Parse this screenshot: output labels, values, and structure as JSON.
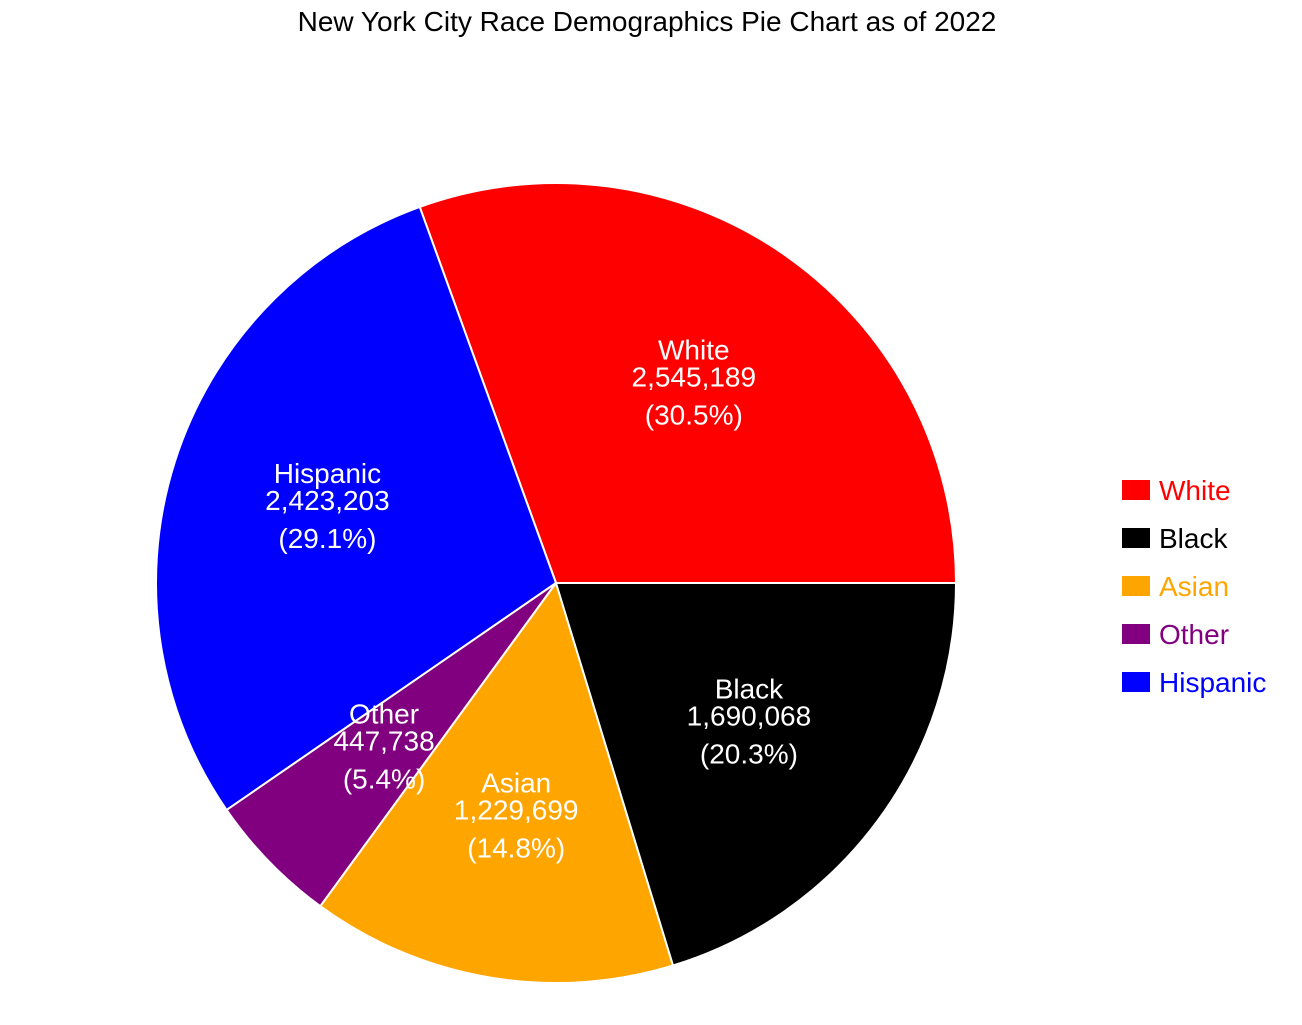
{
  "chart_data": {
    "type": "pie",
    "title": "New York City Race Demographics Pie Chart as of 2022",
    "slices": [
      {
        "label": "White",
        "value": 2545189,
        "value_text": "2,545,189",
        "percent_text": "(30.5%)",
        "color": "#ff0000"
      },
      {
        "label": "Hispanic",
        "value": 2423203,
        "value_text": "2,423,203",
        "percent_text": "(29.1%)",
        "color": "#0000ff"
      },
      {
        "label": "Other",
        "value": 447738,
        "value_text": "447,738",
        "percent_text": "(5.4%)",
        "color": "#800080"
      },
      {
        "label": "Asian",
        "value": 1229699,
        "value_text": "1,229,699",
        "percent_text": "(14.8%)",
        "color": "#ffa500"
      },
      {
        "label": "Black",
        "value": 1690068,
        "value_text": "1,690,068",
        "percent_text": "(20.3%)",
        "color": "#000000"
      }
    ],
    "legend": {
      "position": "right",
      "order": [
        "White",
        "Black",
        "Asian",
        "Other",
        "Hispanic"
      ]
    }
  }
}
